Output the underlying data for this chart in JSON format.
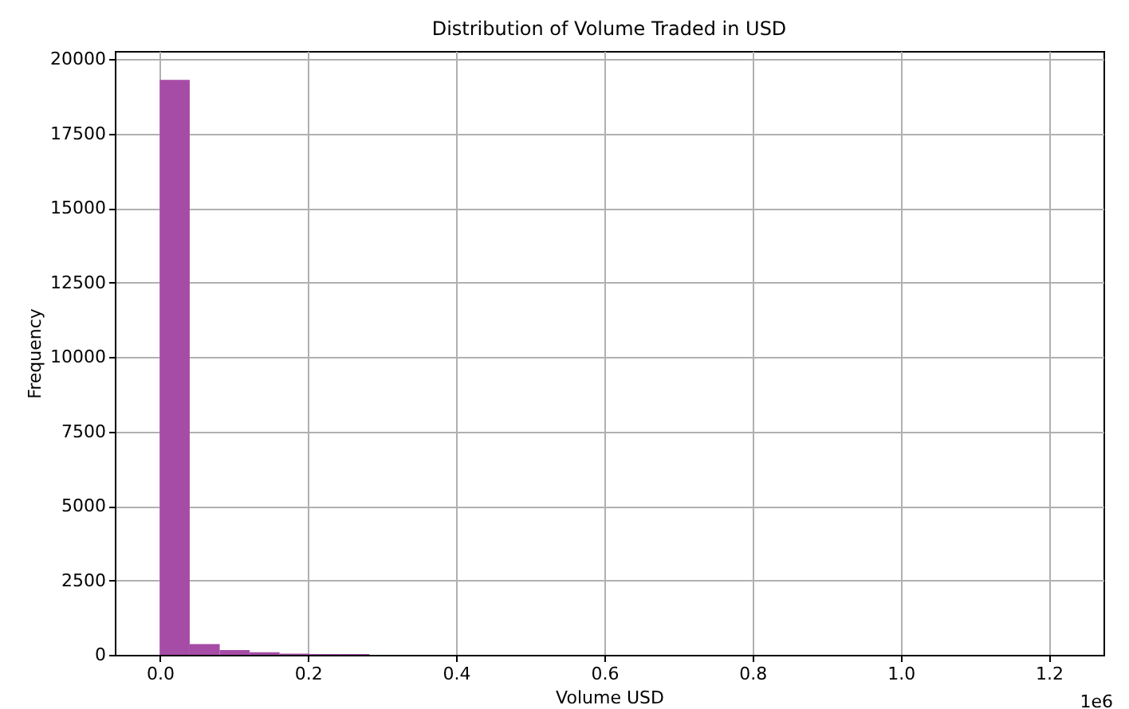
{
  "chart_data": {
    "type": "histogram",
    "title": "Distribution of Volume Traded in USD",
    "xlabel": "Volume USD",
    "ylabel": "Frequency",
    "bins": [
      0,
      0.0404,
      0.0809,
      0.1213,
      0.1617,
      0.2022,
      0.2426,
      0.283,
      0.3235,
      0.3639,
      0.4043,
      0.4448,
      0.4852,
      0.5256,
      0.5661,
      0.6065,
      0.6469,
      0.6874,
      0.7278,
      0.7682,
      0.8087,
      0.8491,
      0.8895,
      0.93,
      0.9704,
      1.0108,
      1.0513,
      1.0917,
      1.1321,
      1.1726,
      1.213
    ],
    "values": [
      19300,
      360,
      160,
      90,
      40,
      30,
      30,
      0,
      0,
      0,
      0,
      0,
      0,
      0,
      0,
      0,
      0,
      0,
      0,
      0,
      0,
      0,
      0,
      0,
      0,
      0,
      0,
      0,
      0,
      0
    ],
    "color": "#a64ca6",
    "xlim": [
      -0.0607,
      1.2737
    ],
    "ylim": [
      0,
      20270
    ],
    "xticks": [
      {
        "value": 0,
        "label": "0.0"
      },
      {
        "value": 0.2,
        "label": "0.2"
      },
      {
        "value": 0.4,
        "label": "0.4"
      },
      {
        "value": 0.6,
        "label": "0.6"
      },
      {
        "value": 0.8,
        "label": "0.8"
      },
      {
        "value": 1.0,
        "label": "1.0"
      },
      {
        "value": 1.2,
        "label": "1.2"
      }
    ],
    "yticks": [
      0,
      2500,
      5000,
      7500,
      10000,
      12500,
      15000,
      17500,
      20000
    ],
    "grid": true,
    "annotations": [
      "1e6"
    ]
  }
}
